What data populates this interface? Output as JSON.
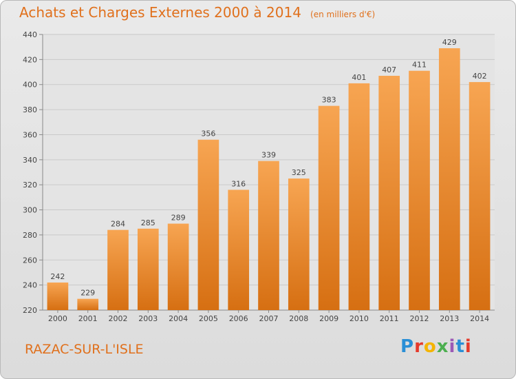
{
  "title": "Achats et Charges Externes 2000 à 2014",
  "unit_label": "(en milliers d'€)",
  "commune": "RAZAC-SUR-L'ISLE",
  "logo": {
    "text": "Proxiti",
    "letter_colors": [
      "#2a8fd6",
      "#e53a2b",
      "#f4b400",
      "#4caf50",
      "#9b59b6",
      "#2a8fd6",
      "#e53a2b"
    ]
  },
  "colors": {
    "bar_light": "#f7a552",
    "bar_dark": "#d66f12",
    "accent": "#e0701c"
  },
  "chart_data": {
    "type": "bar",
    "categories": [
      "2000",
      "2001",
      "2002",
      "2003",
      "2004",
      "2005",
      "2006",
      "2007",
      "2008",
      "2009",
      "2010",
      "2011",
      "2012",
      "2013",
      "2014"
    ],
    "values": [
      242,
      229,
      284,
      285,
      289,
      356,
      316,
      339,
      325,
      383,
      401,
      407,
      411,
      429,
      402
    ],
    "ylim": [
      220,
      440
    ],
    "yticks": [
      220,
      240,
      260,
      280,
      300,
      320,
      340,
      360,
      380,
      400,
      420,
      440
    ],
    "grid": true,
    "xlabel": "",
    "ylabel": ""
  }
}
